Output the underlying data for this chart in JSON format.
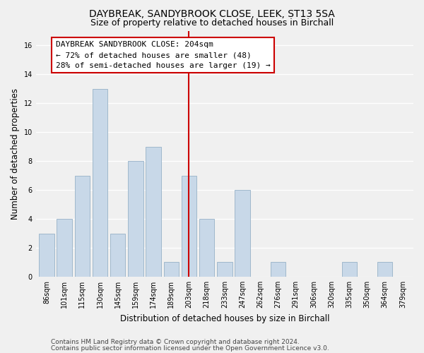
{
  "title": "DAYBREAK, SANDYBROOK CLOSE, LEEK, ST13 5SA",
  "subtitle": "Size of property relative to detached houses in Birchall",
  "xlabel": "Distribution of detached houses by size in Birchall",
  "ylabel": "Number of detached properties",
  "footer_line1": "Contains HM Land Registry data © Crown copyright and database right 2024.",
  "footer_line2": "Contains public sector information licensed under the Open Government Licence v3.0.",
  "bar_labels": [
    "86sqm",
    "101sqm",
    "115sqm",
    "130sqm",
    "145sqm",
    "159sqm",
    "174sqm",
    "189sqm",
    "203sqm",
    "218sqm",
    "233sqm",
    "247sqm",
    "262sqm",
    "276sqm",
    "291sqm",
    "306sqm",
    "320sqm",
    "335sqm",
    "350sqm",
    "364sqm",
    "379sqm"
  ],
  "bar_values": [
    3,
    4,
    7,
    13,
    3,
    8,
    9,
    1,
    7,
    4,
    1,
    6,
    0,
    1,
    0,
    0,
    0,
    1,
    0,
    1,
    0
  ],
  "bar_color": "#c8d8e8",
  "bar_edge_color": "#a0b8cc",
  "reference_bar_index": 8,
  "reference_line_color": "#cc0000",
  "annotation_line1": "DAYBREAK SANDYBROOK CLOSE: 204sqm",
  "annotation_line2": "← 72% of detached houses are smaller (48)",
  "annotation_line3": "28% of semi-detached houses are larger (19) →",
  "ylim": [
    0,
    17
  ],
  "yticks": [
    0,
    2,
    4,
    6,
    8,
    10,
    12,
    14,
    16
  ],
  "background_color": "#f0f0f0",
  "plot_bg_color": "#f0f0f0",
  "grid_color": "#ffffff",
  "title_fontsize": 10,
  "subtitle_fontsize": 9,
  "axis_label_fontsize": 8.5,
  "tick_fontsize": 7,
  "annotation_fontsize": 8,
  "footer_fontsize": 6.5
}
